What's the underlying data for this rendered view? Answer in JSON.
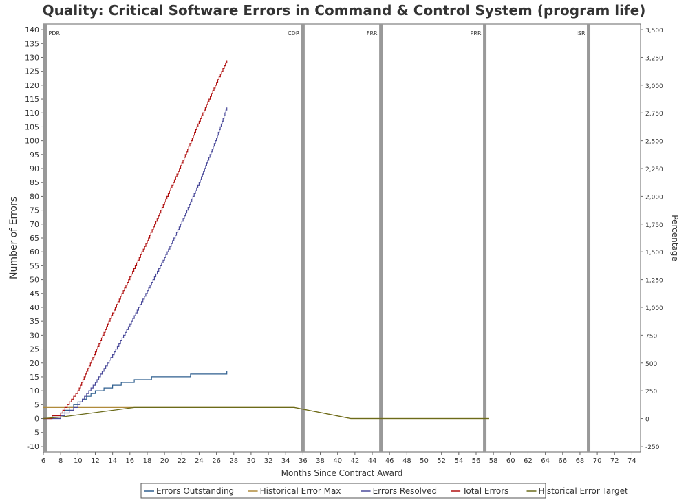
{
  "chart_data": {
    "type": "line",
    "title": "Quality: Critical Software Errors in Command & Control System (program life)",
    "xlabel": "Months Since Contract Award",
    "ylabel": "Number of Errors",
    "y2label": "Percentage",
    "xlim": [
      6,
      75
    ],
    "ylim": [
      -12,
      142
    ],
    "y2lim": [
      -300,
      3550
    ],
    "x_ticks": [
      6,
      8,
      10,
      12,
      14,
      16,
      18,
      20,
      22,
      24,
      26,
      28,
      30,
      32,
      34,
      36,
      38,
      40,
      42,
      44,
      46,
      48,
      50,
      52,
      54,
      56,
      58,
      60,
      62,
      64,
      66,
      68,
      70,
      72,
      74
    ],
    "y_ticks": [
      -10,
      -5,
      0,
      5,
      10,
      15,
      20,
      25,
      30,
      35,
      40,
      45,
      50,
      55,
      60,
      65,
      70,
      75,
      80,
      85,
      90,
      95,
      100,
      105,
      110,
      115,
      120,
      125,
      130,
      135,
      140
    ],
    "y2_ticks": [
      -250,
      0,
      250,
      500,
      750,
      1000,
      1250,
      1500,
      1750,
      2000,
      2250,
      2500,
      2750,
      3000,
      3250,
      3500
    ],
    "y2_tick_labels": [
      "-250",
      "0",
      "250",
      "500",
      "750",
      "1,000",
      "1,250",
      "1,500",
      "1,750",
      "2,000",
      "2,250",
      "2,500",
      "2,750",
      "3,000",
      "3,250",
      "3,500"
    ],
    "grid": false,
    "legend_position": "bottom",
    "milestones": [
      {
        "label": "PDR",
        "x": 6.2
      },
      {
        "label": "CDR",
        "x": 36
      },
      {
        "label": "FRR",
        "x": 45
      },
      {
        "label": "PRR",
        "x": 57
      },
      {
        "label": "ISR",
        "x": 69
      }
    ],
    "series": [
      {
        "name": "Errors Outstanding",
        "color": "#2f5f8f",
        "step": true,
        "x": [
          6,
          7,
          8,
          8.5,
          9,
          9.5,
          10,
          10.5,
          11,
          11.5,
          12,
          13,
          14,
          15,
          16.5,
          18.5,
          23,
          27.2
        ],
        "y": [
          0,
          1,
          2,
          3,
          4,
          5,
          6,
          7,
          8,
          9,
          10,
          11,
          12,
          13,
          14,
          15,
          16,
          17
        ]
      },
      {
        "name": "Historical Error Max",
        "color": "#b08a3a",
        "step": false,
        "x": [
          6,
          35,
          41.5,
          57.5
        ],
        "y": [
          4,
          4,
          0,
          0
        ]
      },
      {
        "name": "Errors Resolved",
        "color": "#4a4a9a",
        "step": true,
        "x": [
          6,
          8,
          10,
          12,
          14,
          16,
          18,
          20,
          22,
          24,
          26,
          27.2
        ],
        "y": [
          0,
          1,
          5,
          13,
          23,
          34,
          46,
          58,
          71,
          85,
          101,
          112
        ]
      },
      {
        "name": "Total Errors",
        "color": "#b01010",
        "step": true,
        "x": [
          6,
          8,
          9,
          10,
          12,
          14,
          16,
          18,
          20,
          22,
          24,
          26,
          27.2
        ],
        "y": [
          0,
          2,
          6,
          10,
          24,
          38,
          51,
          64,
          78,
          92,
          107,
          121,
          129
        ]
      },
      {
        "name": "Historical Error Target",
        "color": "#6b6b1a",
        "step": false,
        "x": [
          6,
          8,
          16.5,
          35,
          41.5,
          57.5
        ],
        "y": [
          0,
          0.5,
          4,
          4,
          0,
          0
        ]
      }
    ]
  }
}
